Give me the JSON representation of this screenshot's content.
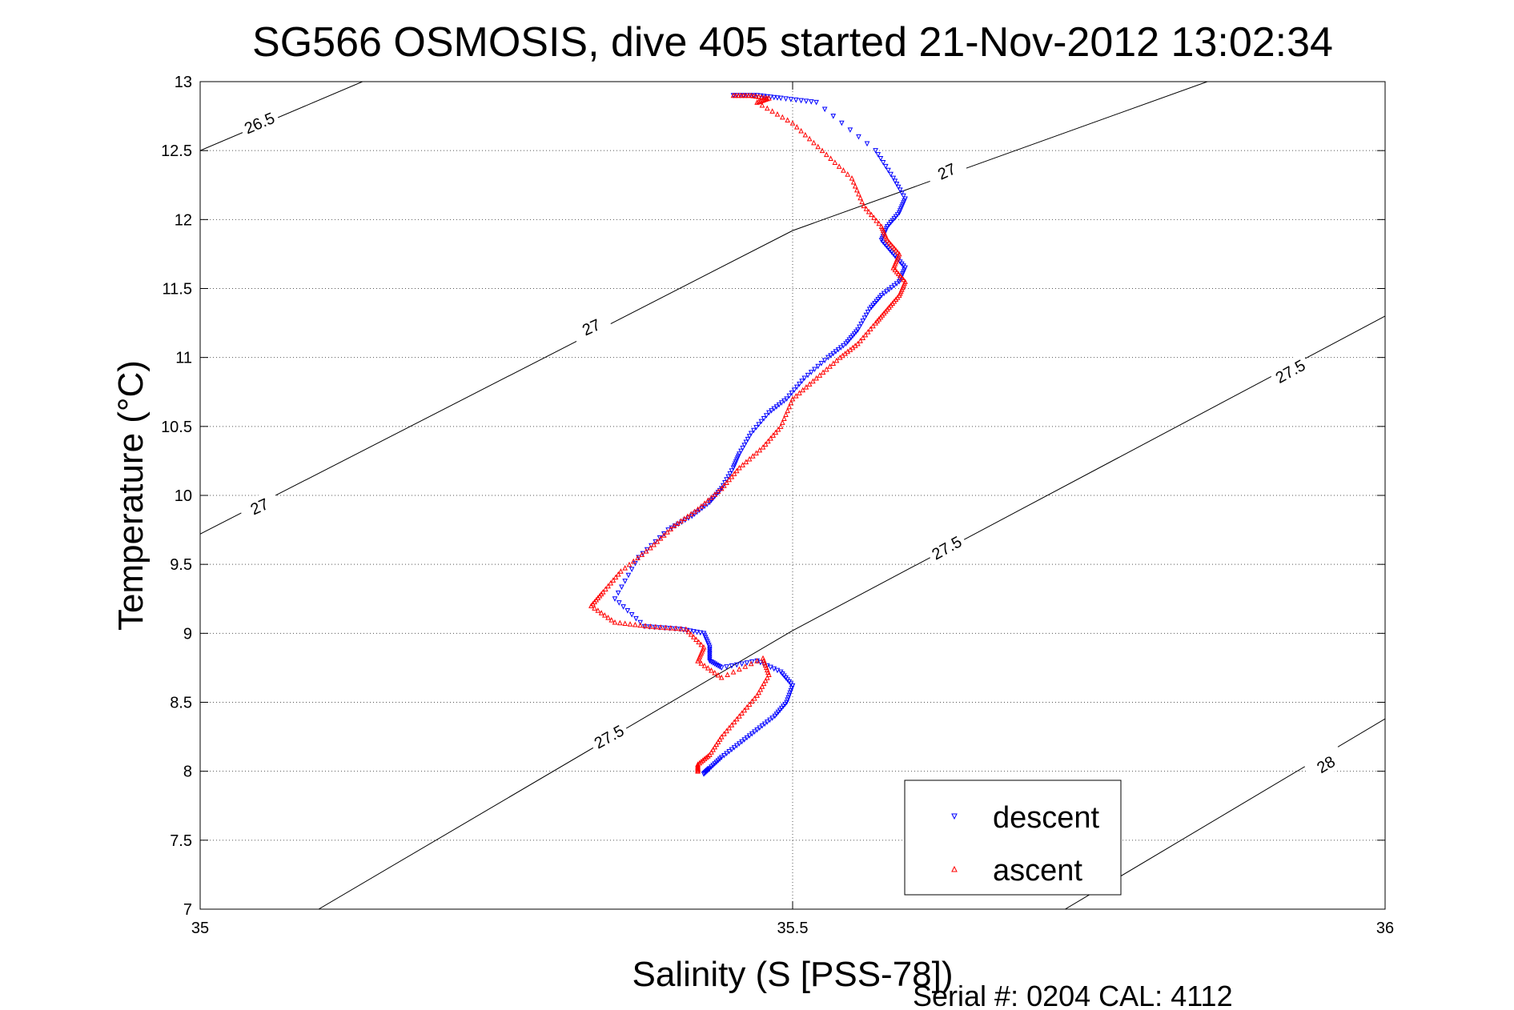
{
  "chart_data": {
    "type": "scatter",
    "title": "SG566 OSMOSIS, dive 405 started 21-Nov-2012 13:02:34",
    "xlabel": "Salinity (S [PSS-78])",
    "ylabel": "Temperature (°C)",
    "xlim": [
      35,
      36
    ],
    "ylim": [
      7,
      13
    ],
    "x_ticks": [
      35,
      35.5,
      36
    ],
    "x_tick_labels": [
      "35",
      "35.5",
      "36"
    ],
    "y_ticks": [
      7,
      7.5,
      8,
      8.5,
      9,
      9.5,
      10,
      10.5,
      11,
      11.5,
      12,
      12.5,
      13
    ],
    "y_tick_labels": [
      "7",
      "7.5",
      "8",
      "8.5",
      "9",
      "9.5",
      "10",
      "10.5",
      "11",
      "11.5",
      "12",
      "12.5",
      "13"
    ],
    "grid": true,
    "legend_position": "bottom-right",
    "footer": "Serial #: 0204  CAL: 4112",
    "density_contours": [
      {
        "label": "26.5",
        "points": [
          [
            35.0,
            12.5
          ],
          [
            35.137,
            13.0
          ]
        ],
        "label_points": [
          [
            35.05,
            12.7
          ]
        ]
      },
      {
        "label": "27",
        "points": [
          [
            35.0,
            9.72
          ],
          [
            35.5,
            11.92
          ],
          [
            35.85,
            13.0
          ]
        ],
        "label_points": [
          [
            35.05,
            9.92
          ],
          [
            35.33,
            11.22
          ],
          [
            35.63,
            12.35
          ]
        ]
      },
      {
        "label": "27.5",
        "points": [
          [
            35.1,
            7.0
          ],
          [
            35.5,
            9.02
          ],
          [
            36.0,
            11.3
          ]
        ],
        "label_points": [
          [
            35.345,
            8.25
          ],
          [
            35.63,
            9.62
          ],
          [
            35.92,
            10.9
          ]
        ]
      },
      {
        "label": "28",
        "points": [
          [
            35.73,
            7.0
          ],
          [
            36.0,
            8.38
          ]
        ],
        "label_points": [
          [
            35.95,
            8.05
          ]
        ]
      }
    ],
    "series": [
      {
        "name": "descent",
        "color": "#0000ff",
        "marker": "triangle-down",
        "x": [
          35.45,
          35.47,
          35.49,
          35.52,
          35.57,
          35.585,
          35.595,
          35.59,
          35.58,
          35.575,
          35.585,
          35.595,
          35.59,
          35.575,
          35.565,
          35.555,
          35.545,
          35.53,
          35.51,
          35.495,
          35.48,
          35.465,
          35.455,
          35.45,
          35.44,
          35.43,
          35.415,
          35.395,
          35.37,
          35.35,
          35.375,
          35.405,
          35.425,
          35.43,
          35.43,
          35.44,
          35.47,
          35.49,
          35.5,
          35.495,
          35.485,
          35.47,
          35.455,
          35.44,
          35.43,
          35.425
        ],
        "y": [
          12.9,
          12.9,
          12.88,
          12.85,
          12.5,
          12.3,
          12.15,
          12.05,
          11.95,
          11.85,
          11.75,
          11.65,
          11.55,
          11.45,
          11.35,
          11.2,
          11.1,
          11.0,
          10.85,
          10.7,
          10.6,
          10.45,
          10.3,
          10.2,
          10.05,
          9.95,
          9.85,
          9.75,
          9.55,
          9.25,
          9.05,
          9.03,
          9.0,
          8.9,
          8.8,
          8.75,
          8.8,
          8.72,
          8.62,
          8.5,
          8.4,
          8.3,
          8.2,
          8.1,
          8.02,
          7.98
        ]
      },
      {
        "name": "ascent",
        "color": "#ff0000",
        "marker": "triangle-up",
        "x": [
          35.45,
          35.465,
          35.48,
          35.47,
          35.5,
          35.525,
          35.55,
          35.56,
          35.575,
          35.58,
          35.59,
          35.585,
          35.595,
          35.59,
          35.58,
          35.57,
          35.555,
          35.54,
          35.52,
          35.5,
          35.49,
          35.475,
          35.455,
          35.44,
          35.42,
          35.4,
          35.38,
          35.355,
          35.34,
          35.33,
          35.35,
          35.38,
          35.41,
          35.425,
          35.42,
          35.44,
          35.475,
          35.48,
          35.47,
          35.455,
          35.44,
          35.43,
          35.42,
          35.42
        ],
        "y": [
          12.9,
          12.9,
          12.88,
          12.85,
          12.7,
          12.5,
          12.3,
          12.1,
          11.95,
          11.85,
          11.75,
          11.65,
          11.55,
          11.45,
          11.35,
          11.25,
          11.1,
          11.0,
          10.85,
          10.7,
          10.5,
          10.35,
          10.2,
          10.05,
          9.9,
          9.78,
          9.62,
          9.45,
          9.3,
          9.2,
          9.08,
          9.05,
          9.03,
          8.9,
          8.8,
          8.68,
          8.82,
          8.7,
          8.55,
          8.4,
          8.25,
          8.12,
          8.05,
          8.0
        ]
      }
    ]
  }
}
